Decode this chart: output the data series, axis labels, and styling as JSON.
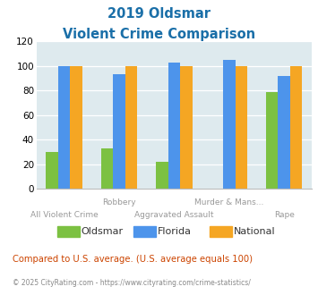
{
  "title_line1": "2019 Oldsmar",
  "title_line2": "Violent Crime Comparison",
  "categories": [
    "All Violent Crime",
    "Robbery",
    "Aggravated Assault",
    "Murder & Mans...",
    "Rape"
  ],
  "series": {
    "Oldsmar": [
      30,
      33,
      22,
      0,
      79
    ],
    "Florida": [
      100,
      93,
      103,
      105,
      92
    ],
    "National": [
      100,
      100,
      100,
      100,
      100
    ]
  },
  "colors": {
    "Oldsmar": "#7cc142",
    "Florida": "#4d94eb",
    "National": "#f5a623"
  },
  "ylim": [
    0,
    120
  ],
  "yticks": [
    0,
    20,
    40,
    60,
    80,
    100,
    120
  ],
  "bg_color": "#deeaee",
  "footer_text": "Compared to U.S. average. (U.S. average equals 100)",
  "copyright_text": "© 2025 CityRating.com - https://www.cityrating.com/crime-statistics/",
  "title_color": "#1a6fa8",
  "footer_color": "#cc4400",
  "copyright_color": "#888888",
  "xtick_label_color": "#999999",
  "bar_width": 0.22
}
